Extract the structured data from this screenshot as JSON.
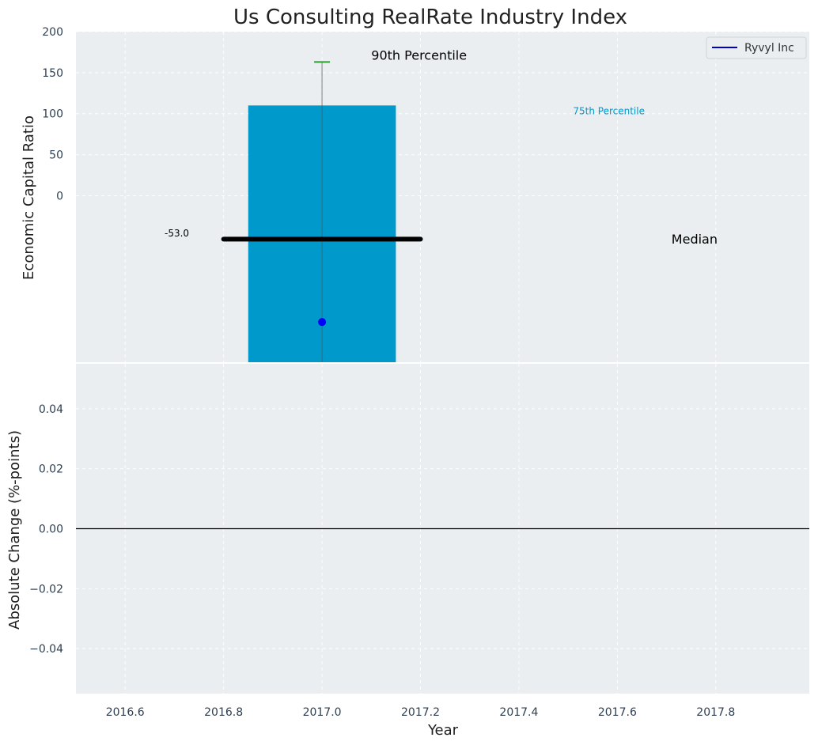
{
  "chart_data": [
    {
      "type": "bar",
      "title": "Us Consulting RealRate Industry Index",
      "ylabel": "Economic Capital Ratio",
      "ylim": [
        -203,
        200
      ],
      "yticks": [
        0,
        50,
        100,
        150,
        200
      ],
      "grid": true,
      "legend_placement": "top-right",
      "legend": [
        {
          "name": "Ryvyl Inc",
          "color": "#0000cc"
        }
      ],
      "bars": [
        {
          "x": 2017.0,
          "bottom": -203,
          "top": 110,
          "color": "#0099cc"
        }
      ],
      "whisker": {
        "x": 2017.0,
        "low": -203,
        "high": 163,
        "cap_color": "#2ca02c"
      },
      "median_line": {
        "x_start": 2016.8,
        "x_end": 2017.2,
        "value": -53.0,
        "color": "#000000"
      },
      "ryvyl_point": {
        "x": 2017.0,
        "value": -154
      },
      "annotations": [
        {
          "text": "90th Percentile",
          "x": 2017.1,
          "y": 171,
          "color": "#000000"
        },
        {
          "text": "75th Percentile",
          "x": 2017.51,
          "y": 103,
          "color": "#0099cc"
        },
        {
          "text": "-53.0",
          "x": 2016.68,
          "y": -46,
          "color": "#000000"
        },
        {
          "text": "Median",
          "x": 2017.71,
          "y": -53,
          "color": "#000000"
        }
      ]
    },
    {
      "type": "line",
      "xlabel": "Year",
      "ylabel": "Absolute Change (%-points)",
      "xlim": [
        2016.5,
        2017.99
      ],
      "xticks": [
        2016.6,
        2016.8,
        2017.0,
        2017.2,
        2017.4,
        2017.6,
        2017.8
      ],
      "ylim": [
        -0.055,
        0.055
      ],
      "yticks": [
        -0.04,
        -0.02,
        0.0,
        0.02,
        0.04
      ],
      "zero_line": 0.0,
      "grid": true
    }
  ]
}
